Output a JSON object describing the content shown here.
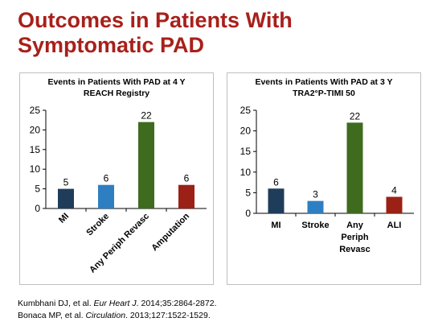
{
  "slide": {
    "title_line1": "Outcomes in Patients With",
    "title_line2": "Symptomatic PAD"
  },
  "colors": {
    "title": "#a8201a",
    "bar_mi": "#1f3d5a",
    "bar_stroke": "#2e7fc1",
    "bar_revasc": "#3f6b1f",
    "bar_red": "#9b2016"
  },
  "chart_data": [
    {
      "type": "bar",
      "title": "Events in Patients With PAD at 4 Y",
      "subtitle": "REACH Registry",
      "categories": [
        "MI",
        "Stroke",
        "Any Periph Revasc",
        "Amputation"
      ],
      "values": [
        5,
        6,
        22,
        6
      ],
      "data_labels": [
        "5",
        "6",
        "22",
        "6"
      ],
      "colors": [
        "#1f3d5a",
        "#2e7fc1",
        "#3f6b1f",
        "#9b2016"
      ],
      "ylim": [
        0,
        25
      ],
      "yticks": [
        "0",
        "5",
        "10",
        "15",
        "20",
        "25"
      ],
      "xlabel_rotation": "rotated -45",
      "grid": false,
      "legend": "none"
    },
    {
      "type": "bar",
      "title": "Events in Patients With PAD at 3 Y",
      "subtitle": "TRA2°P-TIMI 50",
      "categories": [
        "MI",
        "Stroke",
        "Any Periph Revasc",
        "ALI"
      ],
      "category_lines": [
        [
          "MI"
        ],
        [
          "Stroke"
        ],
        [
          "Any",
          "Periph",
          "Revasc"
        ],
        [
          "ALI"
        ]
      ],
      "values": [
        6,
        3,
        22,
        4
      ],
      "data_labels": [
        "6",
        "3",
        "22",
        "4"
      ],
      "colors": [
        "#1f3d5a",
        "#2e7fc1",
        "#3f6b1f",
        "#9b2016"
      ],
      "ylim": [
        0,
        25
      ],
      "yticks": [
        "0",
        "5",
        "10",
        "15",
        "20",
        "25"
      ],
      "xlabel_rotation": "horizontal",
      "grid": false,
      "legend": "none"
    }
  ],
  "references": [
    {
      "pre": "Kumbhani DJ, et al. ",
      "journal": "Eur Heart J",
      "post": ". 2014;35:2864-2872."
    },
    {
      "pre": "Bonaca MP, et al. ",
      "journal": "Circulation",
      "post": ". 2013;127:1522-1529."
    }
  ]
}
